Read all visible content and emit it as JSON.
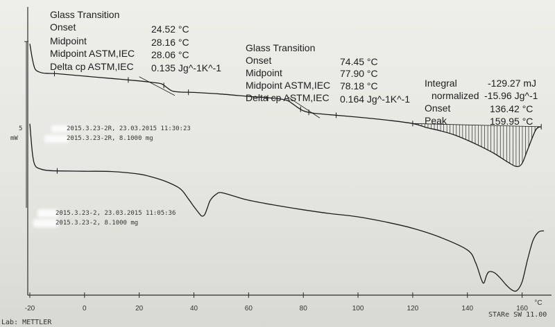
{
  "chart_data": {
    "type": "line",
    "xlabel": "°C",
    "xlim": [
      -20,
      170
    ],
    "x_ticks": [
      -20,
      0,
      20,
      40,
      60,
      80,
      100,
      120,
      140,
      160
    ],
    "scale_bar": {
      "value": "5",
      "unit": "mW"
    },
    "series": [
      {
        "name": "2015.3.23-2R, 23.03.2015 11:30:23",
        "sample_info": "2015.3.23-2R, 8.1000 mg",
        "x": [
          -20,
          -19,
          -18,
          -16,
          -14,
          -10,
          0,
          10,
          20,
          25,
          28,
          30,
          32,
          35,
          40,
          50,
          60,
          70,
          74,
          76,
          78,
          80,
          82,
          85,
          90,
          100,
          110,
          120,
          125,
          130,
          135,
          140,
          145,
          150,
          155,
          158,
          160,
          162,
          165,
          167
        ],
        "y": [
          5.8,
          3.8,
          2.6,
          2.2,
          2.1,
          2.05,
          1.75,
          1.45,
          1.15,
          0.95,
          0.8,
          0.35,
          -0.1,
          -0.25,
          -0.3,
          -0.5,
          -0.8,
          -1.05,
          -1.3,
          -1.7,
          -2.2,
          -2.6,
          -2.8,
          -2.95,
          -3.1,
          -3.4,
          -3.75,
          -4.2,
          -4.7,
          -5.1,
          -5.6,
          -6.3,
          -7.1,
          -8.0,
          -9.1,
          -9.6,
          -9.2,
          -7.5,
          -5.0,
          -4.6
        ]
      },
      {
        "name": "2015.3.23-2, 23.03.2015 11:05:36",
        "sample_info": "2015.3.23-2, 8.1000 mg",
        "x": [
          -20,
          -19,
          -18,
          -16,
          -14,
          -10,
          0,
          10,
          20,
          25,
          30,
          35,
          38,
          40,
          42,
          43,
          44,
          45,
          46,
          48,
          50,
          55,
          60,
          70,
          80,
          90,
          100,
          110,
          120,
          130,
          140,
          143,
          145,
          146,
          147,
          148,
          150,
          152,
          154,
          156,
          158,
          160,
          162,
          164,
          166,
          168
        ],
        "y": [
          5.8,
          1.0,
          -0.8,
          -1.3,
          -1.5,
          -1.6,
          -1.65,
          -1.7,
          -2.1,
          -2.6,
          -3.3,
          -4.4,
          -6.0,
          -7.2,
          -8.3,
          -8.7,
          -8.4,
          -7.3,
          -6.2,
          -5.3,
          -5.0,
          -5.6,
          -6.2,
          -7.0,
          -7.7,
          -8.3,
          -8.8,
          -9.6,
          -10.6,
          -12.0,
          -14.0,
          -16.0,
          -18.5,
          -19.2,
          -18.0,
          -17.4,
          -17.6,
          -18.4,
          -19.4,
          -20.2,
          -20.4,
          -19.0,
          -15.5,
          -12.5,
          -11.2,
          -11.0
        ]
      }
    ],
    "annotations": [
      {
        "title": "Glass Transition",
        "rows": [
          {
            "label": "Onset",
            "value": "24.52 °C"
          },
          {
            "label": "Midpoint",
            "value": "28.16 °C"
          },
          {
            "label": "Midpoint ASTM,IEC",
            "value": "28.06 °C"
          },
          {
            "label": "Delta cp ASTM,IEC",
            "value": "0.135 Jg^-1K^-1"
          }
        ]
      },
      {
        "title": "Glass Transition",
        "rows": [
          {
            "label": "Onset",
            "value": "74.45 °C"
          },
          {
            "label": "Midpoint",
            "value": "77.90 °C"
          },
          {
            "label": "Midpoint ASTM,IEC",
            "value": "78.18 °C"
          },
          {
            "label": "Delta cp ASTM,IEC",
            "value": "0.164 Jg^-1K^-1"
          }
        ]
      },
      {
        "title": "",
        "rows": [
          {
            "label": "Integral",
            "value": "-129.27 mJ"
          },
          {
            "label": "normalized",
            "value": "-15.96 Jg^-1"
          },
          {
            "label": "Onset",
            "value": "136.42 °C"
          },
          {
            "label": "Peak",
            "value": "159.95 °C"
          }
        ]
      }
    ],
    "footer": {
      "left": "Lab: METTLER",
      "right": "STARe SW 11.00"
    }
  }
}
